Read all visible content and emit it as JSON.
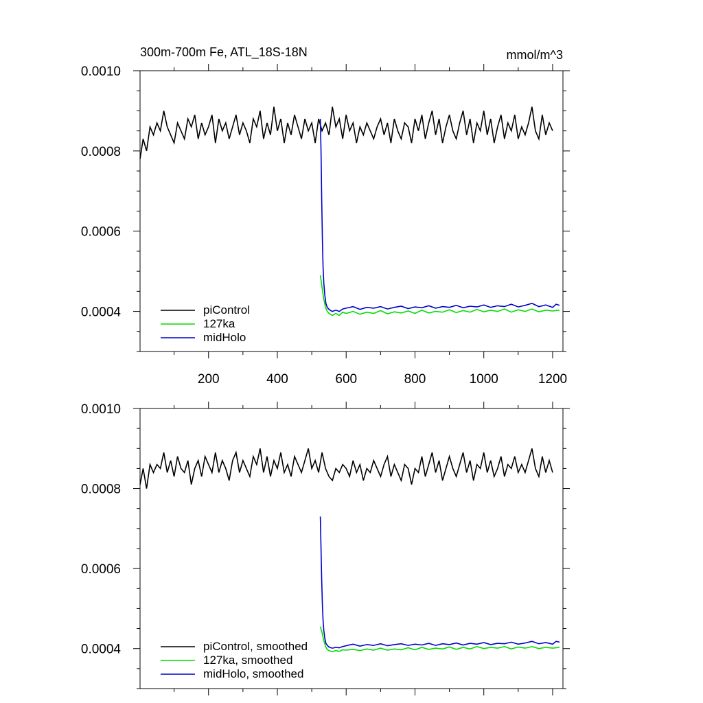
{
  "colors": {
    "piControl": "#000000",
    "127ka": "#00dd00",
    "midHolo": "#0000cc"
  },
  "chart_data": [
    {
      "type": "line",
      "title": "300m-700m Fe, ATL_18S-18N",
      "units": "mmol/m^3",
      "xlabel": "",
      "ylabel": "",
      "xlim": [
        1,
        1230
      ],
      "ylim": [
        0.0003,
        0.001
      ],
      "xticks": [
        200,
        400,
        600,
        800,
        1000,
        1200
      ],
      "xtick_labels": [
        "200",
        "400",
        "600",
        "800",
        "1000",
        "1200"
      ],
      "yticks": [
        0.0004,
        0.0006,
        0.0008,
        0.001
      ],
      "ytick_labels": [
        "0.0004",
        "0.0006",
        "0.0008",
        "0.0010"
      ],
      "grid": false,
      "legend_position": "bottom-left",
      "series": [
        {
          "name": "piControl",
          "color_key": "piControl",
          "x": [
            1,
            10,
            20,
            30,
            40,
            50,
            60,
            70,
            80,
            90,
            100,
            110,
            120,
            130,
            140,
            150,
            160,
            170,
            180,
            190,
            200,
            210,
            220,
            230,
            240,
            250,
            260,
            270,
            280,
            290,
            300,
            310,
            320,
            330,
            340,
            350,
            360,
            370,
            380,
            390,
            400,
            410,
            420,
            430,
            440,
            450,
            460,
            470,
            480,
            490,
            500,
            510,
            520,
            530,
            540,
            550,
            560,
            570,
            580,
            590,
            600,
            610,
            620,
            630,
            640,
            650,
            660,
            670,
            680,
            690,
            700,
            710,
            720,
            730,
            740,
            750,
            760,
            770,
            780,
            790,
            800,
            810,
            820,
            830,
            840,
            850,
            860,
            870,
            880,
            890,
            900,
            910,
            920,
            930,
            940,
            950,
            960,
            970,
            980,
            990,
            1000,
            1010,
            1020,
            1030,
            1040,
            1050,
            1060,
            1070,
            1080,
            1090,
            1100,
            1110,
            1120,
            1130,
            1140,
            1150,
            1160,
            1170,
            1180,
            1190,
            1200
          ],
          "y": [
            0.00078,
            0.00083,
            0.0008,
            0.00086,
            0.00084,
            0.00087,
            0.00085,
            0.0009,
            0.00086,
            0.00084,
            0.00082,
            0.00087,
            0.00085,
            0.00083,
            0.00088,
            0.00086,
            0.00089,
            0.00083,
            0.00087,
            0.00084,
            0.00086,
            0.00089,
            0.00082,
            0.00088,
            0.00085,
            0.00087,
            0.00083,
            0.00086,
            0.00089,
            0.00084,
            0.00087,
            0.00085,
            0.00082,
            0.00088,
            0.00086,
            0.0009,
            0.00083,
            0.00087,
            0.00084,
            0.00091,
            0.00085,
            0.00088,
            0.00082,
            0.00087,
            0.00084,
            0.00089,
            0.00086,
            0.00083,
            0.00088,
            0.00085,
            0.00087,
            0.00082,
            0.00088,
            0.00085,
            0.00087,
            0.00084,
            0.00091,
            0.00086,
            0.00088,
            0.00083,
            0.00089,
            0.00085,
            0.00087,
            0.00082,
            0.00086,
            0.00084,
            0.00087,
            0.00085,
            0.00083,
            0.00086,
            0.00088,
            0.00084,
            0.00087,
            0.00082,
            0.00088,
            0.00085,
            0.00083,
            0.00087,
            0.00086,
            0.00082,
            0.00088,
            0.00085,
            0.00089,
            0.00083,
            0.00087,
            0.0009,
            0.00084,
            0.00088,
            0.00082,
            0.00086,
            0.00089,
            0.00085,
            0.00083,
            0.00087,
            0.0009,
            0.00084,
            0.00088,
            0.00082,
            0.00087,
            0.00085,
            0.0009,
            0.00084,
            0.00088,
            0.00082,
            0.00086,
            0.00089,
            0.00083,
            0.00087,
            0.00085,
            0.00089,
            0.00083,
            0.00086,
            0.00084,
            0.00087,
            0.00091,
            0.00085,
            0.00083,
            0.00089,
            0.00084,
            0.00087,
            0.00085
          ]
        },
        {
          "name": "127ka",
          "color_key": "127ka",
          "x": [
            525,
            530,
            535,
            540,
            545,
            550,
            560,
            570,
            580,
            590,
            600,
            620,
            640,
            660,
            680,
            700,
            720,
            740,
            760,
            780,
            800,
            820,
            840,
            860,
            880,
            900,
            920,
            940,
            960,
            980,
            1000,
            1020,
            1040,
            1060,
            1080,
            1100,
            1120,
            1140,
            1160,
            1180,
            1200,
            1220
          ],
          "y": [
            0.00049,
            0.00046,
            0.00043,
            0.00041,
            0.0004,
            0.000395,
            0.00039,
            0.000395,
            0.00039,
            0.000398,
            0.000395,
            0.0004,
            0.000393,
            0.000398,
            0.000395,
            0.000402,
            0.000394,
            0.000399,
            0.000396,
            0.000401,
            0.000395,
            0.000403,
            0.000396,
            0.0004,
            0.000398,
            0.000404,
            0.000397,
            0.000402,
            0.000398,
            0.000405,
            0.000399,
            0.000403,
            0.0004,
            0.000406,
            0.000398,
            0.000404,
            0.0004,
            0.000406,
            0.000399,
            0.000403,
            0.000401,
            0.000403
          ]
        },
        {
          "name": "midHolo",
          "color_key": "midHolo",
          "x": [
            525,
            527,
            529,
            531,
            533,
            535,
            538,
            541,
            545,
            550,
            555,
            560,
            570,
            580,
            590,
            600,
            620,
            640,
            660,
            680,
            700,
            720,
            740,
            760,
            780,
            800,
            820,
            840,
            860,
            880,
            900,
            920,
            940,
            960,
            980,
            1000,
            1020,
            1040,
            1060,
            1080,
            1100,
            1120,
            1140,
            1160,
            1180,
            1200,
            1210,
            1220
          ],
          "y": [
            0.00088,
            0.0008,
            0.00068,
            0.00058,
            0.00051,
            0.00047,
            0.00044,
            0.00042,
            0.00041,
            0.000405,
            0.000402,
            0.0004,
            0.000403,
            0.0004,
            0.000406,
            0.000408,
            0.000412,
            0.000405,
            0.00041,
            0.000408,
            0.000412,
            0.000406,
            0.00041,
            0.000413,
            0.000407,
            0.000411,
            0.000409,
            0.000414,
            0.000408,
            0.000412,
            0.00041,
            0.000415,
            0.000409,
            0.000413,
            0.000411,
            0.000416,
            0.00041,
            0.000414,
            0.000412,
            0.000418,
            0.000411,
            0.000415,
            0.00042,
            0.000412,
            0.000416,
            0.00041,
            0.000418,
            0.000415
          ]
        }
      ]
    },
    {
      "type": "line",
      "title": "",
      "units": "",
      "xlabel": "",
      "ylabel": "",
      "xlim": [
        1,
        1230
      ],
      "ylim": [
        0.0003,
        0.001
      ],
      "xticks": [
        200,
        400,
        600,
        800,
        1000,
        1200
      ],
      "xtick_labels": [],
      "yticks": [
        0.0004,
        0.0006,
        0.0008,
        0.001
      ],
      "ytick_labels": [
        "0.0004",
        "0.0006",
        "0.0008",
        "0.0010"
      ],
      "grid": false,
      "legend_position": "bottom-left",
      "series": [
        {
          "name": "piControl, smoothed",
          "color_key": "piControl",
          "x": [
            1,
            10,
            20,
            30,
            40,
            50,
            60,
            70,
            80,
            90,
            100,
            110,
            120,
            130,
            140,
            150,
            160,
            170,
            180,
            190,
            200,
            210,
            220,
            230,
            240,
            250,
            260,
            270,
            280,
            290,
            300,
            310,
            320,
            330,
            340,
            350,
            360,
            370,
            380,
            390,
            400,
            410,
            420,
            430,
            440,
            450,
            460,
            470,
            480,
            490,
            500,
            510,
            520,
            530,
            540,
            550,
            560,
            570,
            580,
            590,
            600,
            610,
            620,
            630,
            640,
            650,
            660,
            670,
            680,
            690,
            700,
            710,
            720,
            730,
            740,
            750,
            760,
            770,
            780,
            790,
            800,
            810,
            820,
            830,
            840,
            850,
            860,
            870,
            880,
            890,
            900,
            910,
            920,
            930,
            940,
            950,
            960,
            970,
            980,
            990,
            1000,
            1010,
            1020,
            1030,
            1040,
            1050,
            1060,
            1070,
            1080,
            1090,
            1100,
            1110,
            1120,
            1130,
            1140,
            1150,
            1160,
            1170,
            1180,
            1190,
            1200
          ],
          "y": [
            0.00081,
            0.00085,
            0.0008,
            0.00086,
            0.00084,
            0.00086,
            0.00085,
            0.00089,
            0.00084,
            0.00087,
            0.00083,
            0.00088,
            0.00085,
            0.00084,
            0.00087,
            0.00081,
            0.00085,
            0.00087,
            0.00083,
            0.00088,
            0.00086,
            0.00084,
            0.00089,
            0.00084,
            0.00087,
            0.00085,
            0.00082,
            0.00087,
            0.00089,
            0.00084,
            0.00087,
            0.00085,
            0.00083,
            0.00088,
            0.00086,
            0.0009,
            0.00084,
            0.00088,
            0.00083,
            0.00087,
            0.00085,
            0.00089,
            0.00084,
            0.00086,
            0.00083,
            0.00088,
            0.00086,
            0.00084,
            0.00087,
            0.0009,
            0.00085,
            0.00087,
            0.00084,
            0.00089,
            0.00085,
            0.00083,
            0.00082,
            0.00085,
            0.00084,
            0.00086,
            0.00085,
            0.00083,
            0.00087,
            0.00084,
            0.00086,
            0.00082,
            0.00085,
            0.00084,
            0.00087,
            0.00085,
            0.00083,
            0.00086,
            0.00088,
            0.00083,
            0.00086,
            0.00084,
            0.00082,
            0.00086,
            0.00085,
            0.00081,
            0.00085,
            0.00084,
            0.00088,
            0.00083,
            0.00086,
            0.00089,
            0.00084,
            0.00087,
            0.00082,
            0.00085,
            0.00088,
            0.00085,
            0.00083,
            0.00086,
            0.00089,
            0.00084,
            0.00087,
            0.00082,
            0.00086,
            0.00085,
            0.00089,
            0.00084,
            0.00087,
            0.00083,
            0.00085,
            0.00088,
            0.00083,
            0.00086,
            0.00085,
            0.00088,
            0.00084,
            0.00086,
            0.00084,
            0.00087,
            0.0009,
            0.00085,
            0.00083,
            0.00088,
            0.00084,
            0.00087,
            0.00084
          ]
        },
        {
          "name": "127ka, smoothed",
          "color_key": "127ka",
          "x": [
            525,
            530,
            535,
            540,
            545,
            550,
            560,
            570,
            580,
            590,
            600,
            620,
            640,
            660,
            680,
            700,
            720,
            740,
            760,
            780,
            800,
            820,
            840,
            860,
            880,
            900,
            920,
            940,
            960,
            980,
            1000,
            1020,
            1040,
            1060,
            1080,
            1100,
            1120,
            1140,
            1160,
            1180,
            1200,
            1220
          ],
          "y": [
            0.000455,
            0.00044,
            0.00042,
            0.000405,
            0.000398,
            0.000395,
            0.000392,
            0.000395,
            0.000393,
            0.000397,
            0.000396,
            0.000398,
            0.000395,
            0.000399,
            0.000396,
            0.000401,
            0.000396,
            0.000399,
            0.000397,
            0.000402,
            0.000397,
            0.000403,
            0.000398,
            0.000401,
            0.000399,
            0.000404,
            0.000398,
            0.000403,
            0.000399,
            0.000405,
            0.0004,
            0.000403,
            0.000401,
            0.000405,
            0.000399,
            0.000404,
            0.000401,
            0.000405,
            0.0004,
            0.000403,
            0.000401,
            0.000403
          ]
        },
        {
          "name": "midHolo, smoothed",
          "color_key": "midHolo",
          "x": [
            525,
            527,
            529,
            531,
            533,
            535,
            538,
            541,
            545,
            550,
            555,
            560,
            570,
            580,
            590,
            600,
            620,
            640,
            660,
            680,
            700,
            720,
            740,
            760,
            780,
            800,
            820,
            840,
            860,
            880,
            900,
            920,
            940,
            960,
            980,
            1000,
            1020,
            1040,
            1060,
            1080,
            1100,
            1120,
            1140,
            1160,
            1180,
            1200,
            1210,
            1220
          ],
          "y": [
            0.00073,
            0.00065,
            0.00057,
            0.00051,
            0.00047,
            0.000445,
            0.000425,
            0.000413,
            0.000408,
            0.000404,
            0.000402,
            0.000401,
            0.000403,
            0.000402,
            0.000405,
            0.000407,
            0.000411,
            0.000406,
            0.00041,
            0.000408,
            0.000412,
            0.000407,
            0.00041,
            0.000412,
            0.000408,
            0.000411,
            0.000409,
            0.000413,
            0.000408,
            0.000412,
            0.00041,
            0.000414,
            0.000409,
            0.000413,
            0.000411,
            0.000415,
            0.00041,
            0.000413,
            0.000412,
            0.000416,
            0.000411,
            0.000414,
            0.000418,
            0.000412,
            0.000415,
            0.000411,
            0.000418,
            0.000416
          ]
        }
      ]
    }
  ]
}
